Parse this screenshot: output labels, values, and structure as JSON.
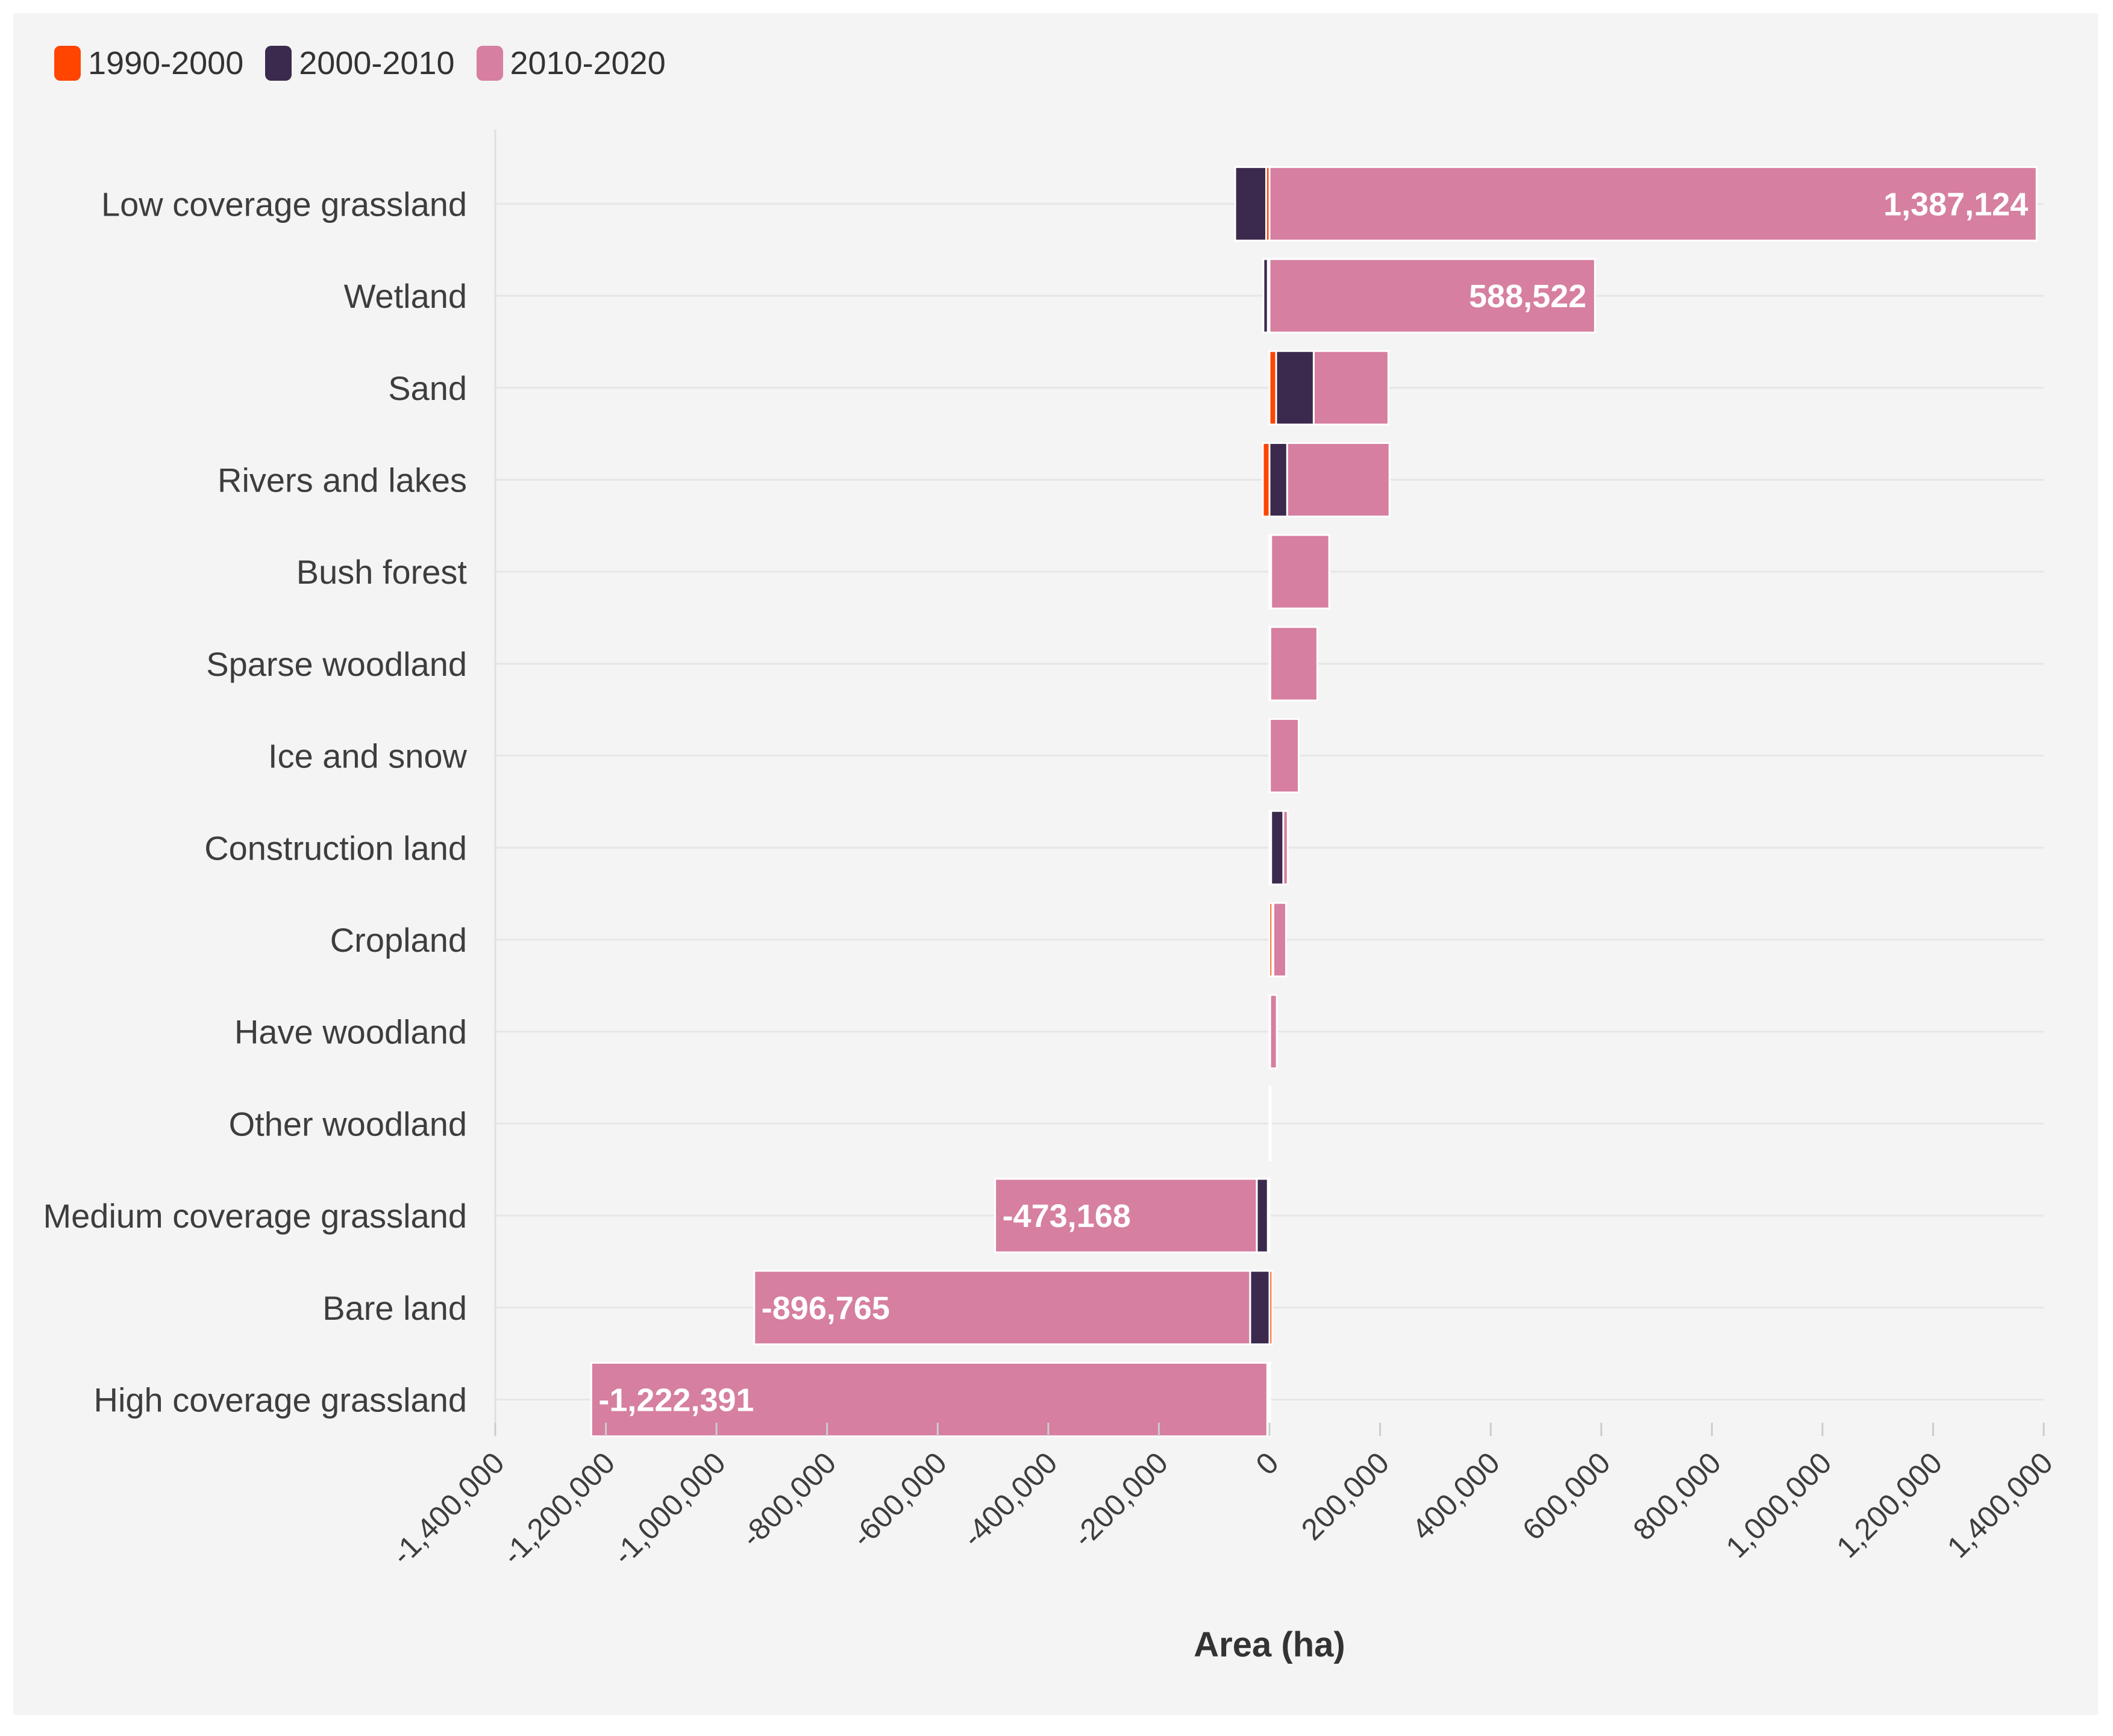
{
  "colors": {
    "panel_bg": "#f4f4f4",
    "s1990": "#ff4500",
    "s2000": "#3b2a4d",
    "s2010": "#d67fa0",
    "grid": "#e6e6e6",
    "label_fg": "#ffffff"
  },
  "chart_data": {
    "type": "bar",
    "orientation": "horizontal",
    "stacked": true,
    "xlabel": "Area (ha)",
    "xlim": [
      -1400000,
      1400000
    ],
    "ticks": [
      {
        "value": -1400000,
        "label": "-1,400,000"
      },
      {
        "value": -1200000,
        "label": "-1,200,000"
      },
      {
        "value": -1000000,
        "label": "-1,000,000"
      },
      {
        "value": -800000,
        "label": "-800,000"
      },
      {
        "value": -600000,
        "label": "-600,000"
      },
      {
        "value": -400000,
        "label": "-400,000"
      },
      {
        "value": -200000,
        "label": "-200,000"
      },
      {
        "value": 0,
        "label": "0"
      },
      {
        "value": 200000,
        "label": "200,000"
      },
      {
        "value": 400000,
        "label": "400,000"
      },
      {
        "value": 600000,
        "label": "600,000"
      },
      {
        "value": 800000,
        "label": "800,000"
      },
      {
        "value": 1000000,
        "label": "1,000,000"
      },
      {
        "value": 1200000,
        "label": "1,200,000"
      },
      {
        "value": 1400000,
        "label": "1,400,000"
      }
    ],
    "legend_position": "top-left",
    "categories": [
      "Low coverage grassland",
      "Wetland",
      "Sand",
      "Rivers and lakes",
      "Bush forest",
      "Sparse woodland",
      "Ice and snow",
      "Construction land",
      "Cropland",
      "Have woodland",
      "Other woodland",
      "Medium coverage grassland",
      "Bare land",
      "High coverage grassland"
    ],
    "series": [
      {
        "name": "1990-2000",
        "color_key": "s1990",
        "values": [
          -6000,
          -3000,
          12000,
          -12000,
          1000,
          500,
          300,
          3000,
          5000,
          200,
          100,
          -3000,
          5000,
          -1000
        ]
      },
      {
        "name": "2000-2010",
        "color_key": "s2000",
        "values": [
          -56000,
          -8000,
          68000,
          32000,
          2000,
          1000,
          500,
          22000,
          2000,
          1000,
          200,
          -20000,
          -35000,
          -3000
        ]
      },
      {
        "name": "2010-2020",
        "color_key": "s2010",
        "values": [
          1387124,
          588522,
          135000,
          185000,
          105000,
          85000,
          52000,
          8000,
          23000,
          12000,
          -200,
          -473168,
          -896765,
          -1222391
        ]
      }
    ],
    "data_labels": [
      {
        "category_index": 0,
        "text": "1,387,124"
      },
      {
        "category_index": 1,
        "text": "588,522"
      },
      {
        "category_index": 11,
        "text": "-473,168"
      },
      {
        "category_index": 12,
        "text": "-896,765"
      },
      {
        "category_index": 13,
        "text": "-1,222,391"
      }
    ]
  }
}
